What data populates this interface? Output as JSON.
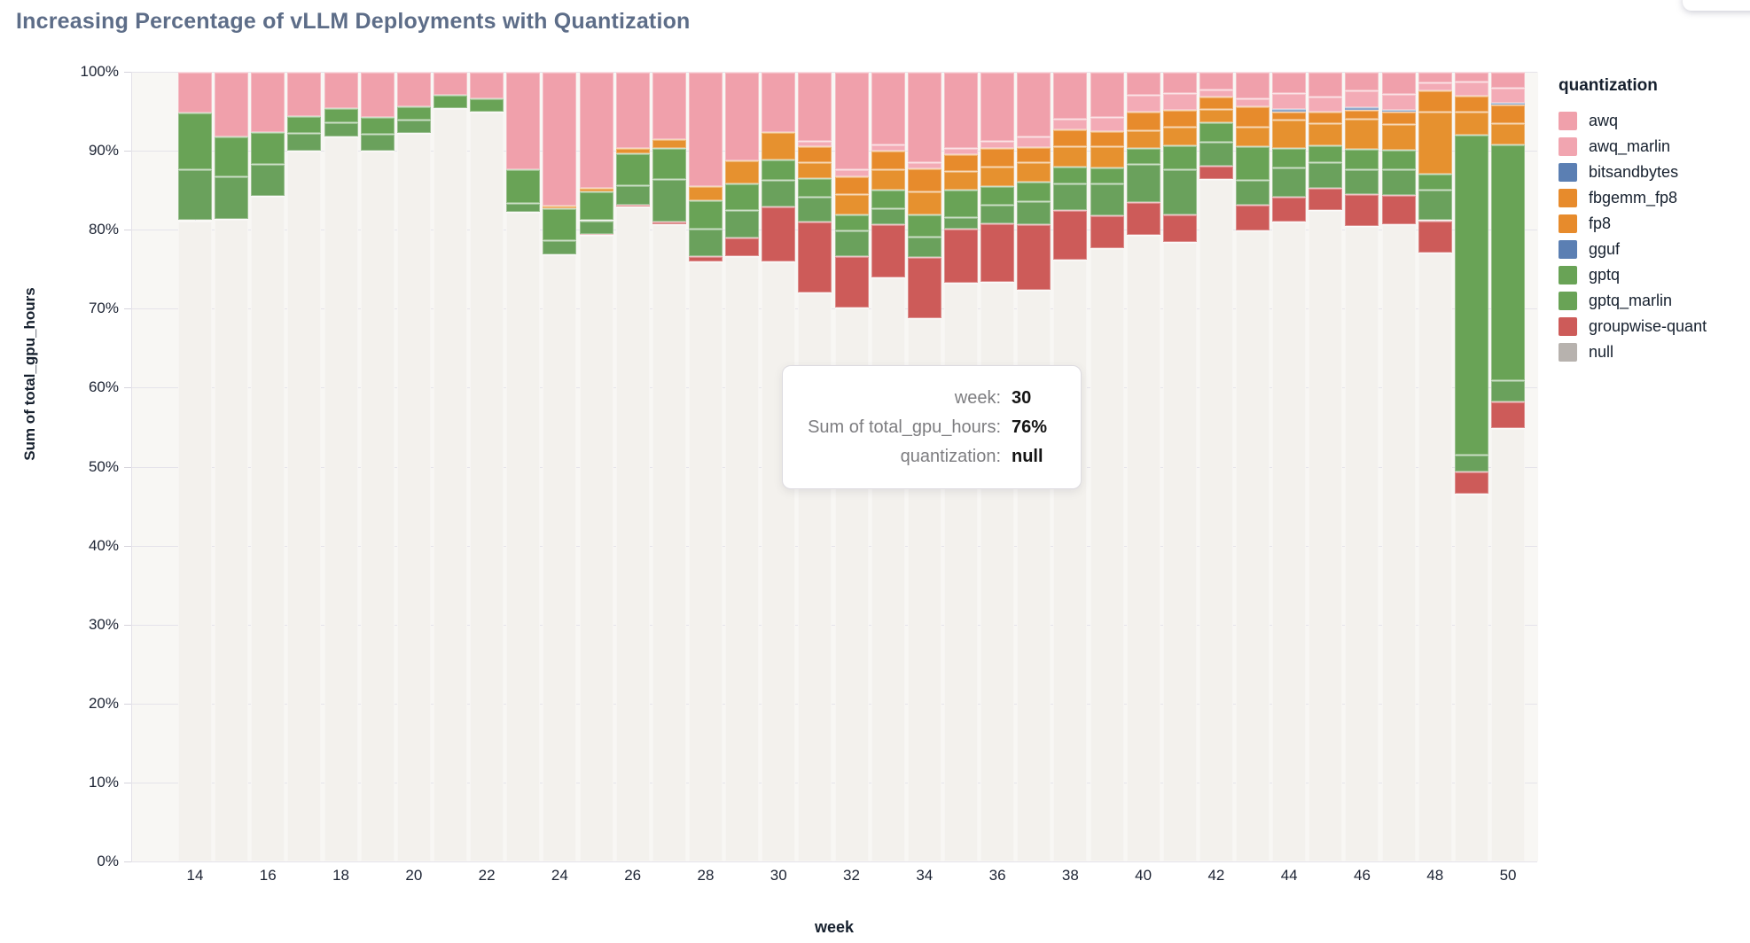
{
  "page": {
    "title": "Increasing Percentage of vLLM Deployments with Quantization"
  },
  "tooltip": {
    "rows": [
      {
        "label": "week:",
        "value": "30"
      },
      {
        "label": "Sum of total_gpu_hours:",
        "value": "76%"
      },
      {
        "label": "quantization:",
        "value": "null"
      }
    ]
  },
  "legend": {
    "title": "quantization",
    "items": [
      {
        "label": "awq",
        "color": "#f0a0ab"
      },
      {
        "label": "awq_marlin",
        "color": "#f1a5b0"
      },
      {
        "label": "bitsandbytes",
        "color": "#5b7fb3"
      },
      {
        "label": "fbgemm_fp8",
        "color": "#e78b2c"
      },
      {
        "label": "fp8",
        "color": "#e78b2c"
      },
      {
        "label": "gguf",
        "color": "#5b7fb3"
      },
      {
        "label": "gptq",
        "color": "#69a356"
      },
      {
        "label": "gptq_marlin",
        "color": "#69a356"
      },
      {
        "label": "groupwise-quant",
        "color": "#cd5b59"
      },
      {
        "label": "null",
        "color": "#b7b2ae"
      }
    ]
  },
  "axes": {
    "y": {
      "label": "Sum of total_gpu_hours",
      "ticks": [
        {
          "value": 100,
          "label": "100%"
        },
        {
          "value": 90,
          "label": "90%"
        },
        {
          "value": 80,
          "label": "80%"
        },
        {
          "value": 70,
          "label": "70%"
        },
        {
          "value": 60,
          "label": "60%"
        },
        {
          "value": 50,
          "label": "50%"
        },
        {
          "value": 40,
          "label": "40%"
        },
        {
          "value": 30,
          "label": "30%"
        },
        {
          "value": 20,
          "label": "20%"
        },
        {
          "value": 10,
          "label": "10%"
        },
        {
          "value": 0,
          "label": "0%"
        }
      ]
    },
    "x": {
      "label": "week",
      "ticks": [
        {
          "value": 14,
          "label": "14"
        },
        {
          "value": 16,
          "label": "16"
        },
        {
          "value": 18,
          "label": "18"
        },
        {
          "value": 20,
          "label": "20"
        },
        {
          "value": 22,
          "label": "22"
        },
        {
          "value": 24,
          "label": "24"
        },
        {
          "value": 26,
          "label": "26"
        },
        {
          "value": 28,
          "label": "28"
        },
        {
          "value": 30,
          "label": "30"
        },
        {
          "value": 32,
          "label": "32"
        },
        {
          "value": 34,
          "label": "34"
        },
        {
          "value": 36,
          "label": "36"
        },
        {
          "value": 38,
          "label": "38"
        },
        {
          "value": 40,
          "label": "40"
        },
        {
          "value": 42,
          "label": "42"
        },
        {
          "value": 44,
          "label": "44"
        },
        {
          "value": 46,
          "label": "46"
        },
        {
          "value": 48,
          "label": "48"
        },
        {
          "value": 50,
          "label": "50"
        }
      ]
    }
  },
  "chart_data": {
    "type": "bar",
    "subtype": "stacked-percent",
    "title": "Increasing Percentage of vLLM Deployments with Quantization",
    "xlabel": "week",
    "ylabel": "Sum of total_gpu_hours",
    "ylim": [
      0,
      100
    ],
    "grid": true,
    "legend_position": "right",
    "x": [
      14,
      15,
      16,
      17,
      18,
      19,
      20,
      21,
      22,
      23,
      24,
      25,
      26,
      27,
      28,
      29,
      30,
      31,
      32,
      33,
      34,
      35,
      36,
      37,
      38,
      39,
      40,
      41,
      42,
      43,
      44,
      45,
      46,
      47,
      48,
      49,
      50
    ],
    "stack_order_bottom_to_top": [
      "null",
      "groupwise-quant",
      "gptq_marlin",
      "gptq",
      "gguf",
      "fp8",
      "fbgemm_fp8",
      "bitsandbytes",
      "awq_marlin",
      "awq"
    ],
    "series": [
      {
        "name": "null",
        "color": "#f3f1ed",
        "values": [
          81.2,
          81.4,
          84.3,
          90.0,
          91.8,
          90.0,
          92.2,
          95.4,
          94.9,
          82.3,
          76.9,
          79.3,
          82.9,
          80.7,
          76.0,
          76.6,
          76.0,
          72.1,
          70.1,
          74.0,
          68.8,
          73.3,
          73.4,
          72.4,
          76.2,
          77.7,
          79.4,
          78.4,
          86.4,
          79.9,
          81.0,
          82.5,
          80.5,
          80.7,
          77.1,
          46.6,
          54.9
        ]
      },
      {
        "name": "groupwise-quant",
        "color": "#cd5b59",
        "values": [
          0,
          0,
          0,
          0,
          0,
          0,
          0,
          0,
          0,
          0,
          0,
          0.2,
          0.3,
          0.3,
          0.6,
          2.4,
          6.9,
          8.9,
          6.6,
          6.7,
          7.7,
          6.8,
          7.4,
          8.3,
          6.3,
          4.1,
          4.1,
          3.5,
          1.7,
          3.3,
          3.2,
          2.8,
          4.0,
          3.7,
          4.1,
          2.8,
          3.3
        ]
      },
      {
        "name": "gptq_marlin",
        "color": "#6aa15c",
        "values": [
          6.5,
          5.4,
          4.0,
          2.2,
          1.8,
          2.1,
          1.7,
          0,
          0,
          1.1,
          1.8,
          1.7,
          2.4,
          5.4,
          3.5,
          3.5,
          3.4,
          3.2,
          3.2,
          2.0,
          2.6,
          1.5,
          2.4,
          2.9,
          3.4,
          4.1,
          4.8,
          5.7,
          3.0,
          3.1,
          3.7,
          3.2,
          3.2,
          3.3,
          3.9,
          2.1,
          2.7
        ]
      },
      {
        "name": "gptq",
        "color": "#69a356",
        "values": [
          7.1,
          5.0,
          4.1,
          2.2,
          1.8,
          2.2,
          1.7,
          1.7,
          1.7,
          4.2,
          4.0,
          3.6,
          4.1,
          3.9,
          3.6,
          3.4,
          2.6,
          2.3,
          2.0,
          2.4,
          2.8,
          3.5,
          2.3,
          2.5,
          2.1,
          2.0,
          2.1,
          3.1,
          2.5,
          4.3,
          2.5,
          2.2,
          2.5,
          2.4,
          2.0,
          40.5,
          29.9
        ]
      },
      {
        "name": "gguf",
        "color": "#5b7fb3",
        "values": [
          0,
          0,
          0,
          0,
          0,
          0,
          0,
          0,
          0,
          0,
          0,
          0,
          0,
          0,
          0,
          0,
          0,
          0,
          0,
          0,
          0,
          0,
          0,
          0,
          0,
          0,
          0,
          0,
          0,
          0,
          0,
          0,
          0,
          0,
          0,
          0,
          0
        ]
      },
      {
        "name": "fp8",
        "color": "#e6912f",
        "values": [
          0,
          0,
          0,
          0,
          0,
          0,
          0,
          0,
          0,
          0,
          0.4,
          0.5,
          0.6,
          1.2,
          1.8,
          2.9,
          3.5,
          2.1,
          2.6,
          2.5,
          3.0,
          2.3,
          2.5,
          2.4,
          2.6,
          2.7,
          2.2,
          2.3,
          1.7,
          2.4,
          3.5,
          2.8,
          3.9,
          3.3,
          7.8,
          2.9,
          2.7
        ]
      },
      {
        "name": "fbgemm_fp8",
        "color": "#e78b2c",
        "values": [
          0,
          0,
          0,
          0,
          0,
          0,
          0,
          0,
          0,
          0,
          0,
          0,
          0,
          0,
          0,
          0,
          0,
          2.0,
          2.3,
          2.4,
          2.9,
          2.2,
          2.4,
          2.0,
          2.1,
          1.9,
          2.4,
          2.2,
          1.6,
          2.6,
          1.1,
          1.5,
          1.1,
          1.5,
          2.7,
          2.1,
          2.3
        ]
      },
      {
        "name": "bitsandbytes",
        "color": "#5b7fb3",
        "values": [
          0,
          0,
          0,
          0,
          0,
          0,
          0,
          0,
          0,
          0,
          0,
          0,
          0,
          0,
          0,
          0,
          0,
          0,
          0,
          0,
          0,
          0,
          0,
          0,
          0,
          0,
          0,
          0,
          0,
          0,
          0.3,
          0,
          0.3,
          0.3,
          0,
          0,
          0.3
        ]
      },
      {
        "name": "awq_marlin",
        "color": "#f3abb6",
        "values": [
          0,
          0,
          0,
          0,
          0,
          0,
          0,
          0,
          0,
          0,
          0,
          0,
          0,
          0,
          0,
          0,
          0,
          0.7,
          0.8,
          0.8,
          0.8,
          0.8,
          0.8,
          1.3,
          1.3,
          1.8,
          2.1,
          2.1,
          0.9,
          1.0,
          2.0,
          1.9,
          2.1,
          2.0,
          1.1,
          1.8,
          1.9
        ]
      },
      {
        "name": "awq",
        "color": "#f0a0ab",
        "values": [
          5.2,
          8.2,
          7.6,
          5.6,
          4.6,
          5.7,
          4.4,
          2.9,
          3.4,
          12.4,
          16.9,
          14.7,
          9.7,
          8.5,
          14.5,
          11.2,
          7.6,
          8.7,
          12.4,
          9.2,
          11.4,
          9.6,
          8.8,
          8.2,
          6.0,
          5.7,
          2.9,
          2.7,
          2.2,
          3.4,
          2.7,
          3.1,
          2.4,
          2.8,
          1.3,
          1.2,
          2.0
        ]
      }
    ],
    "highlighted_datum": {
      "week": 30,
      "category": "null",
      "value": "76%"
    }
  }
}
